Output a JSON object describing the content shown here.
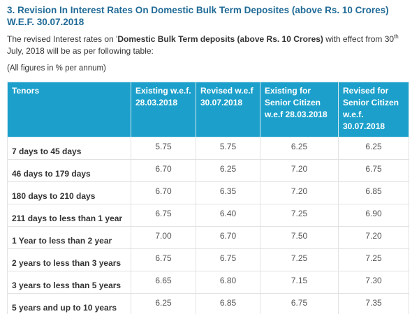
{
  "heading": "3. Revision In Interest Rates On Domestic Bulk Term Deposites (above Rs. 10 Crores) W.E.F. 30.07.2018",
  "intro": {
    "before": "The revised Interest rates on '",
    "bold": "Domestic Bulk Term deposits (above Rs. 10 Crores)",
    "after": " with effect from 30",
    "sup": "th",
    "end": " July, 2018 will be as per following table:"
  },
  "note": "(All figures in % per annum)",
  "table": {
    "header": [
      "Tenors",
      "Existing w.e.f. 28.03.2018",
      "Revised w.e.f 30.07.2018",
      "Existing for Senior Citizen w.e.f 28.03.2018",
      "Revised for Senior Citizen w.e.f. 30.07.2018"
    ],
    "rows": [
      [
        "7 days to 45 days",
        "5.75",
        "5.75",
        "6.25",
        "6.25"
      ],
      [
        "46 days to 179 days",
        "6.70",
        "6.25",
        "7.20",
        "6.75"
      ],
      [
        "180 days to 210 days",
        "6.70",
        "6.35",
        "7.20",
        "6.85"
      ],
      [
        "211 days to less than 1 year",
        "6.75",
        "6.40",
        "7.25",
        "6.90"
      ],
      [
        "1 Year to less than 2 year",
        "7.00",
        "6.70",
        "7.50",
        "7.20"
      ],
      [
        "2 years to less than 3 years",
        "6.75",
        "6.75",
        "7.25",
        "7.25"
      ],
      [
        "3 years to less than 5 years",
        "6.65",
        "6.80",
        "7.15",
        "7.30"
      ],
      [
        "5 years and up to 10 years",
        "6.25",
        "6.85",
        "6.75",
        "7.35"
      ]
    ]
  }
}
